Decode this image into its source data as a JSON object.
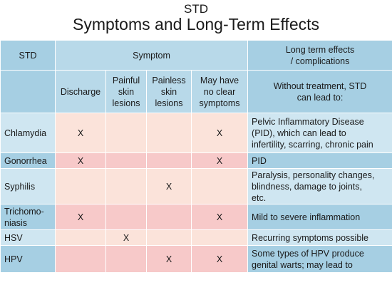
{
  "title": {
    "line1": "STD",
    "line2": "Symptoms and Long-Term Effects"
  },
  "header": {
    "std": "STD",
    "symptom": "Symptom",
    "effects": "Long term effects / complications",
    "effects_line1": "Long term effects",
    "effects_line2": "/ complications",
    "columns": [
      {
        "key": "discharge",
        "lines": [
          "Discharge"
        ]
      },
      {
        "key": "painful",
        "lines": [
          "Painful",
          "skin",
          "lesions"
        ]
      },
      {
        "key": "painless",
        "lines": [
          "Painless",
          "skin",
          "lesions"
        ]
      },
      {
        "key": "noclear",
        "lines": [
          "May have",
          "no clear",
          "symptoms"
        ]
      }
    ],
    "effects_sub_line1": "Without treatment, STD",
    "effects_sub_line2": "can lead to:"
  },
  "rows": [
    {
      "name_lines": [
        "Chlamydia"
      ],
      "discharge": "X",
      "painful": "",
      "painless": "",
      "noclear": "X",
      "effect_lines": [
        "Pelvic Inflammatory Disease",
        "(PID), which can lead to",
        "infertility, scarring, chronic pain"
      ]
    },
    {
      "name_lines": [
        "Gonorrhea"
      ],
      "discharge": "X",
      "painful": "",
      "painless": "",
      "noclear": "X",
      "effect_lines": [
        "PID"
      ]
    },
    {
      "name_lines": [
        "Syphilis"
      ],
      "discharge": "",
      "painful": "",
      "painless": "X",
      "noclear": "",
      "effect_lines": [
        "Paralysis, personality changes,",
        "blindness, damage to joints,",
        "etc."
      ]
    },
    {
      "name_lines": [
        "Trichomo-",
        "niasis"
      ],
      "discharge": "X",
      "painful": "",
      "painless": "",
      "noclear": "X",
      "effect_lines": [
        "Mild to severe inflammation"
      ]
    },
    {
      "name_lines": [
        "HSV"
      ],
      "discharge": "",
      "painful": "X",
      "painless": "",
      "noclear": "",
      "effect_lines": [
        "Recurring symptoms possible"
      ]
    },
    {
      "name_lines": [
        "HPV"
      ],
      "discharge": "",
      "painful": "",
      "painless": "X",
      "noclear": "X",
      "effect_lines": [
        "Some types of HPV produce",
        "genital warts; may lead to"
      ]
    }
  ]
}
